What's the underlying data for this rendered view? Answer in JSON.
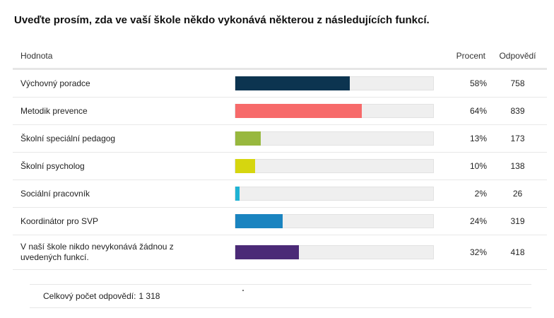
{
  "title": "Uveďte prosím, zda ve vaší škole někdo vykonává některou z následujících funkcí.",
  "columns": {
    "value": "Hodnota",
    "percent": "Procent",
    "responses": "Odpovědí"
  },
  "rows": [
    {
      "label": "Výchovný poradce",
      "percent": "58%",
      "responses": "758",
      "fraction": 0.58,
      "color": "#0c3450"
    },
    {
      "label": "Metodik prevence",
      "percent": "64%",
      "responses": "839",
      "fraction": 0.64,
      "color": "#f76a6a"
    },
    {
      "label": "Školní speciální pedagog",
      "percent": "13%",
      "responses": "173",
      "fraction": 0.13,
      "color": "#98b83e"
    },
    {
      "label": "Školní psycholog",
      "percent": "10%",
      "responses": "138",
      "fraction": 0.1,
      "color": "#d6d60f"
    },
    {
      "label": "Sociální pracovník",
      "percent": "2%",
      "responses": "26",
      "fraction": 0.02,
      "color": "#1fb3d4"
    },
    {
      "label": "Koordinátor pro SVP",
      "percent": "24%",
      "responses": "319",
      "fraction": 0.24,
      "color": "#1a84c0"
    },
    {
      "label": "V naší škole nikdo nevykonává žádnou z uvedených funkcí.",
      "percent": "32%",
      "responses": "418",
      "fraction": 0.32,
      "color": "#4b2a77"
    }
  ],
  "total": {
    "label": "Celkový počet odpovědí:",
    "value": "1 318"
  }
}
